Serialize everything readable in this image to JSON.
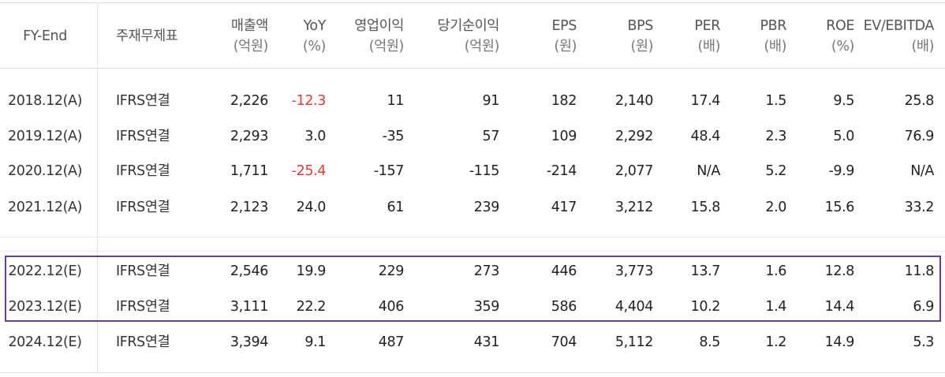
{
  "headers": [
    {
      "label": "FY-End",
      "unit": ""
    },
    {
      "label": "주재무제표",
      "unit": ""
    },
    {
      "label": "매출액",
      "unit": "(억원)"
    },
    {
      "label": "YoY",
      "unit": "(%)"
    },
    {
      "label": "영업이익",
      "unit": "(억원)"
    },
    {
      "label": "당기순이익",
      "unit": "(억원)"
    },
    {
      "label": "EPS",
      "unit": "(원)"
    },
    {
      "label": "BPS",
      "unit": "(원)"
    },
    {
      "label": "PER",
      "unit": "(배)"
    },
    {
      "label": "PBR",
      "unit": "(배)"
    },
    {
      "label": "ROE",
      "unit": "(%)"
    },
    {
      "label": "EV/EBITDA",
      "unit": "(배)"
    }
  ],
  "rows": [
    {
      "cells": [
        "2018.12(A)",
        "IFRS연결",
        "2,226",
        "-12.3",
        "11",
        "91",
        "182",
        "2,140",
        "17.4",
        "1.5",
        "9.5",
        "25.8"
      ],
      "yoy_negative": true
    },
    {
      "cells": [
        "2019.12(A)",
        "IFRS연결",
        "2,293",
        "3.0",
        "-35",
        "57",
        "109",
        "2,292",
        "48.4",
        "2.3",
        "5.0",
        "76.9"
      ],
      "yoy_negative": false
    },
    {
      "cells": [
        "2020.12(A)",
        "IFRS연결",
        "1,711",
        "-25.4",
        "-157",
        "-115",
        "-214",
        "2,077",
        "N/A",
        "5.2",
        "-9.9",
        "N/A"
      ],
      "yoy_negative": true
    },
    {
      "cells": [
        "2021.12(A)",
        "IFRS연결",
        "2,123",
        "24.0",
        "61",
        "239",
        "417",
        "3,212",
        "15.8",
        "2.0",
        "15.6",
        "33.2"
      ],
      "yoy_negative": false
    },
    {
      "cells": [
        "2022.12(E)",
        "IFRS연결",
        "2,546",
        "19.9",
        "229",
        "273",
        "446",
        "3,773",
        "13.7",
        "1.6",
        "12.8",
        "11.8"
      ],
      "yoy_negative": false
    },
    {
      "cells": [
        "2023.12(E)",
        "IFRS연결",
        "3,111",
        "22.2",
        "406",
        "359",
        "586",
        "4,404",
        "10.2",
        "1.4",
        "14.4",
        "6.9"
      ],
      "yoy_negative": false
    },
    {
      "cells": [
        "2024.12(E)",
        "IFRS연결",
        "3,394",
        "9.1",
        "487",
        "431",
        "704",
        "5,112",
        "8.5",
        "1.2",
        "14.9",
        "5.3"
      ],
      "yoy_negative": false
    }
  ],
  "colors": {
    "negative": "#e53935",
    "highlight_border": "#6a3d9a"
  }
}
